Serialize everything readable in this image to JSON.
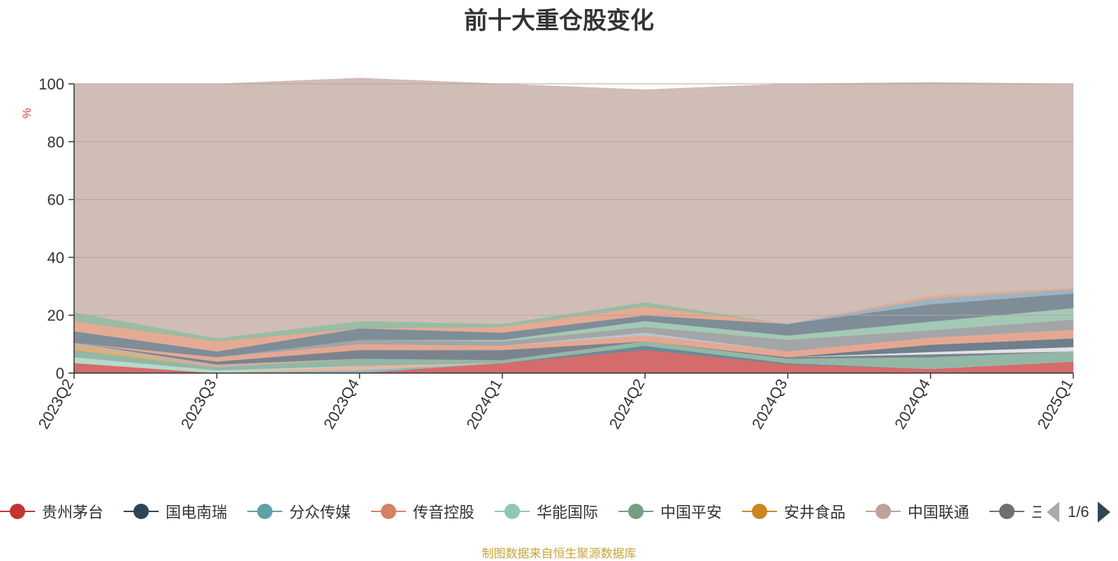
{
  "chart_data": {
    "type": "area",
    "title": "前十大重仓股变化",
    "ylabel": "%",
    "ylim": [
      0,
      100
    ],
    "yticks": [
      0,
      20,
      40,
      60,
      80,
      100
    ],
    "stacked": true,
    "grid": true,
    "legend_position": "bottom",
    "categories": [
      "2023Q2",
      "2023Q3",
      "2023Q4",
      "2024Q1",
      "2024Q2",
      "2024Q3",
      "2024Q4",
      "2025Q1"
    ],
    "series": [
      {
        "name": "贵州茅台",
        "color": "#d46c6c",
        "values": [
          3.5,
          0,
          0,
          3.5,
          8.0,
          3.0,
          1.5,
          4.0
        ]
      },
      {
        "name": "国电南瑞",
        "color": "#6b8a96",
        "values": [
          0,
          0,
          0,
          0,
          1.5,
          0.5,
          0,
          0
        ]
      },
      {
        "name": "分众传媒",
        "color": "#8fb8c2",
        "values": [
          0,
          0,
          1.0,
          0,
          0,
          0,
          0,
          0
        ]
      },
      {
        "name": "传音控股",
        "color": "#e8b5a0",
        "values": [
          0,
          0,
          1.5,
          0,
          0,
          0,
          0,
          0
        ]
      },
      {
        "name": "华能国际",
        "color": "#b6d9c9",
        "values": [
          2.0,
          1.0,
          0,
          0,
          0,
          0,
          0,
          0
        ]
      },
      {
        "name": "中国平安",
        "color": "#93b7a5",
        "values": [
          2.5,
          1.0,
          2.5,
          1.0,
          1.5,
          1.5,
          4.0,
          3.5
        ]
      },
      {
        "name": "安井食品",
        "color": "#ddb16d",
        "values": [
          1.5,
          0,
          0,
          0,
          0,
          0,
          0,
          0
        ]
      },
      {
        "name": "中国联通",
        "color": "#c9b1a8",
        "values": [
          1.0,
          1.0,
          0,
          0,
          0,
          0,
          0,
          0
        ]
      },
      {
        "name": "",
        "color": "#7a848e",
        "values": [
          0,
          1.0,
          3.0,
          3.5,
          0,
          0.5,
          1.0,
          0
        ]
      },
      {
        "name": "",
        "color": "#e0e3e8",
        "values": [
          0,
          0,
          0,
          0,
          0,
          0,
          0.8,
          1.5
        ]
      },
      {
        "name": "",
        "color": "#6f7f8c",
        "values": [
          0,
          0,
          0,
          0,
          0,
          0,
          2.5,
          3.0
        ]
      },
      {
        "name": "",
        "color": "#e6a792",
        "values": [
          0,
          1.5,
          2.0,
          1.5,
          2.0,
          2.0,
          2.5,
          3.0
        ]
      },
      {
        "name": "",
        "color": "#bac4c8",
        "values": [
          0,
          0,
          0,
          0,
          1.0,
          0,
          0,
          0
        ]
      },
      {
        "name": "",
        "color": "#a3a5a6",
        "values": [
          0,
          0,
          1.5,
          1.5,
          2.0,
          4.0,
          2.5,
          3.5
        ]
      },
      {
        "name": "",
        "color": "#a3c9b5",
        "values": [
          0,
          0,
          0,
          0.5,
          2.0,
          1.5,
          3.0,
          4.0
        ]
      },
      {
        "name": "",
        "color": "#7e8d98",
        "values": [
          4.0,
          2.0,
          4.0,
          2.5,
          2.0,
          4.0,
          6.0,
          5.0
        ]
      },
      {
        "name": "",
        "color": "#9eb3c0",
        "values": [
          0,
          0,
          0,
          0,
          0,
          0,
          2.0,
          1.5
        ]
      },
      {
        "name": "",
        "color": "#e5aa93",
        "values": [
          3.5,
          3.5,
          0,
          2.0,
          3.0,
          0,
          1.0,
          0.5
        ]
      },
      {
        "name": "",
        "color": "#98bca4",
        "values": [
          3.0,
          1.0,
          2.5,
          1.0,
          1.5,
          0,
          0,
          0
        ]
      },
      {
        "name": "",
        "color": "#cfbdb6",
        "values": [
          79.0,
          88.0,
          84.0,
          83.0,
          73.5,
          83.0,
          73.7,
          70.5
        ]
      }
    ]
  },
  "legend": {
    "items": [
      {
        "label": "贵州茅台",
        "color": "#c23531"
      },
      {
        "label": "国电南瑞",
        "color": "#2f4554"
      },
      {
        "label": "分众传媒",
        "color": "#61a0a8"
      },
      {
        "label": "传音控股",
        "color": "#d48265"
      },
      {
        "label": "华能国际",
        "color": "#91c7ae"
      },
      {
        "label": "中国平安",
        "color": "#749f83"
      },
      {
        "label": "安井食品",
        "color": "#ca8622"
      },
      {
        "label": "中国联通",
        "color": "#bda29a"
      },
      {
        "label": "三",
        "color": "#6e7074"
      }
    ],
    "page_text": "1/6"
  },
  "source_note": "制图数据来自恒生聚源数据库"
}
